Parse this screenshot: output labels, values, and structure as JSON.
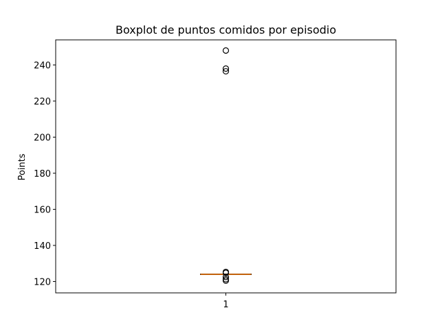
{
  "chart_data": {
    "type": "boxplot",
    "title": "Boxplot de puntos comidos por episodio",
    "xlabel": "",
    "ylabel": "Points",
    "categories": [
      "1"
    ],
    "ylim": [
      113.7,
      253.9
    ],
    "yticks": [
      120,
      140,
      160,
      180,
      200,
      220,
      240
    ],
    "grid": false,
    "box": {
      "q1": 124,
      "median": 124,
      "q3": 124,
      "whisker_low": 124,
      "whisker_high": 124
    },
    "outliers": [
      248,
      238,
      236.5,
      125.3,
      124.8,
      122.5,
      121.3,
      120.5
    ],
    "colors": {
      "box": "#000000",
      "median": "#ff7f0e",
      "outlier_edge": "#000000"
    }
  }
}
